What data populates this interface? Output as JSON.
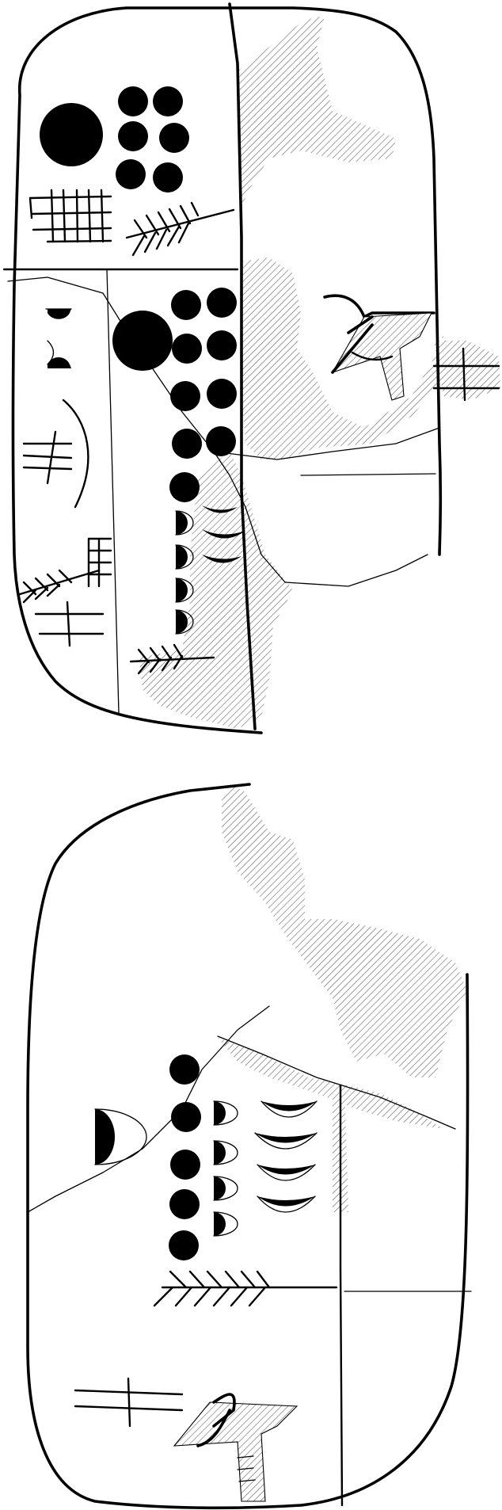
{
  "colors": {
    "background": "#ffffff",
    "ink": "#000000",
    "hatch": "#555555"
  },
  "icons": {
    "tablet": "clay-tablet-outline-drawing",
    "damage": "hatched-damaged-area",
    "numeral_large": "filled-circle-large",
    "numeral_small": "filled-circle-small",
    "numeral_half": "d-shaped-half-disc",
    "numeral_crescent": "crescent-bowl-sign",
    "sign_grain": "barley-ear-sign",
    "sign_grid": "grid-sign",
    "sign_vessel": "vessel-sign",
    "sign_bird": "bird-head-sign",
    "sign_cross": "cross-sign"
  },
  "panels": [
    "obverse-face",
    "reverse-face"
  ]
}
